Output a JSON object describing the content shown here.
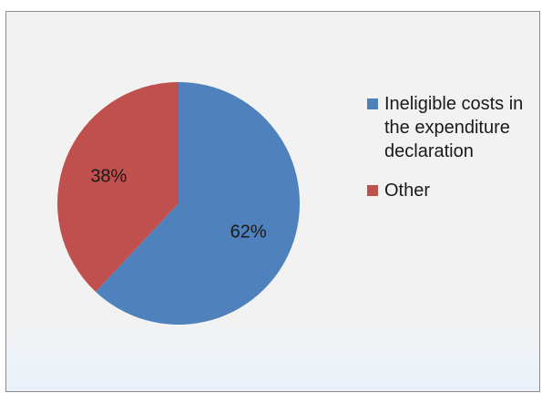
{
  "chart_data": {
    "type": "pie",
    "title": "",
    "slices": [
      {
        "label": "Ineligible costs in the expenditure declaration",
        "value": 62,
        "display": "62%",
        "color": "#4f81bd"
      },
      {
        "label": "Other",
        "value": 38,
        "display": "38%",
        "color": "#c0504d"
      }
    ],
    "legend_position": "right"
  }
}
